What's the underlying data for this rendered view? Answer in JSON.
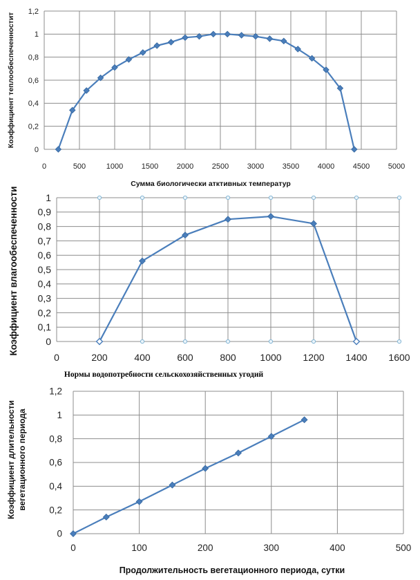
{
  "chart_data": [
    {
      "type": "line",
      "title": "",
      "xlabel": "Сумма биологически атктивных температур",
      "ylabel": "Коэффициент теплообеспеченностит",
      "xlim": [
        0,
        5000
      ],
      "ylim": [
        0,
        1.2
      ],
      "x_ticks": [
        "0",
        "500",
        "1000",
        "1500",
        "2000",
        "2500",
        "3000",
        "3500",
        "4000",
        "4500",
        "5000"
      ],
      "y_ticks": [
        "0",
        "0,2",
        "0,4",
        "0,6",
        "0,8",
        "1",
        "1,2"
      ],
      "grid": true,
      "x": [
        200,
        400,
        600,
        800,
        1000,
        1200,
        1400,
        1600,
        1800,
        2000,
        2200,
        2400,
        2600,
        2800,
        3000,
        3200,
        3400,
        3600,
        3800,
        4000,
        4200,
        4400
      ],
      "y": [
        0,
        0.34,
        0.51,
        0.62,
        0.71,
        0.78,
        0.84,
        0.9,
        0.93,
        0.97,
        0.98,
        1.0,
        1.0,
        0.99,
        0.98,
        0.96,
        0.94,
        0.87,
        0.79,
        0.69,
        0.53,
        0
      ]
    },
    {
      "type": "line",
      "title": "",
      "xlabel": "Нормы водопотребности сельскохозяйственных угодий",
      "ylabel": "Коэффициент влагообеспеченности",
      "xlim": [
        0,
        1600
      ],
      "ylim": [
        0,
        1
      ],
      "x_ticks": [
        "0",
        "200",
        "400",
        "600",
        "800",
        "1000",
        "1200",
        "1400",
        "1600"
      ],
      "y_ticks": [
        "0",
        "0,1",
        "0,2",
        "0,3",
        "0,4",
        "0,5",
        "0,6",
        "0,7",
        "0,8",
        "0,9",
        "1"
      ],
      "grid": true,
      "x": [
        200,
        400,
        600,
        800,
        1000,
        1200,
        1400
      ],
      "y": [
        0,
        0.56,
        0.74,
        0.85,
        0.87,
        0.82,
        0
      ]
    },
    {
      "type": "line",
      "title": "",
      "xlabel": "Продолжительность вегетационного периода, сутки",
      "ylabel_lines": [
        "Коэффициент длительности",
        "вегетационного периода"
      ],
      "xlim": [
        0,
        500
      ],
      "ylim": [
        0,
        1.2
      ],
      "x_ticks": [
        "0",
        "100",
        "200",
        "300",
        "400",
        "500"
      ],
      "y_ticks": [
        "0",
        "0,2",
        "0,4",
        "0,6",
        "0,8",
        "1",
        "1,2"
      ],
      "grid": true,
      "x": [
        0,
        50,
        100,
        150,
        200,
        250,
        300,
        350
      ],
      "y": [
        0,
        0.14,
        0.27,
        0.41,
        0.55,
        0.68,
        0.82,
        0.96
      ]
    }
  ]
}
